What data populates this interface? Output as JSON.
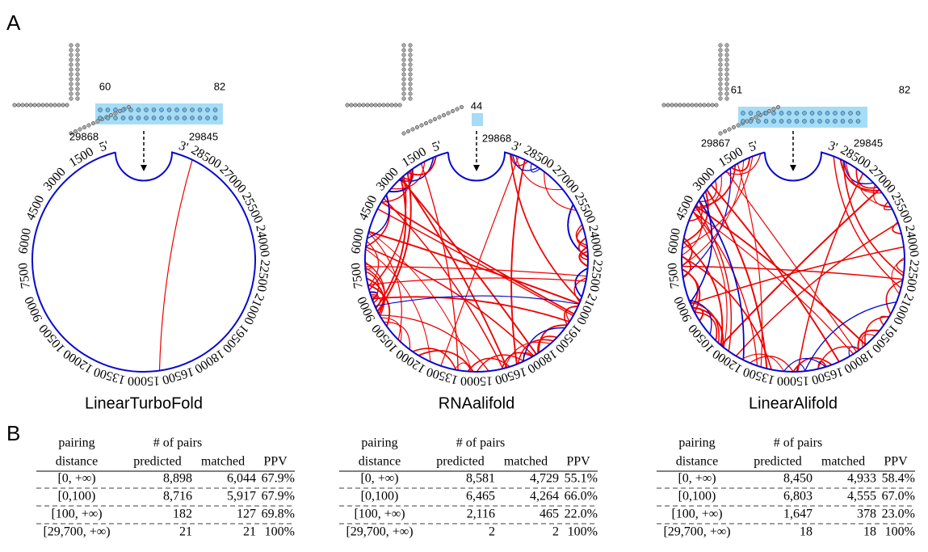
{
  "panel_labels": [
    "A",
    "B"
  ],
  "circle_labels": [
    "5'",
    "3'",
    "1500",
    "3000",
    "4500",
    "6000",
    "7500",
    "9000",
    "10500",
    "12000",
    "13500",
    "15000",
    "16500",
    "18000",
    "19500",
    "21000",
    "22500",
    "24000",
    "25500",
    "27000",
    "28500"
  ],
  "table_header": {
    "top": [
      "pairing",
      "# of pairs"
    ],
    "bottom": [
      "distance",
      "predicted",
      "matched",
      "PPV"
    ]
  },
  "panels": [
    {
      "method": "LinearTurboFold",
      "structure_labels": [
        "60",
        "82",
        "29868",
        "29845"
      ],
      "rows": [
        [
          "[0, +∞)",
          "8,898",
          "6,044",
          "67.9%"
        ],
        [
          "[0,100)",
          "8,716",
          "5,917",
          "67.9%"
        ],
        [
          "[100, +∞)",
          "182",
          "127",
          "69.8%"
        ],
        [
          "[29,700, +∞)",
          "21",
          "21",
          "100%"
        ]
      ]
    },
    {
      "method": "RNAalifold",
      "structure_labels": [
        "44",
        "29868"
      ],
      "rows": [
        [
          "[0, +∞)",
          "8,581",
          "4,729",
          "55.1%"
        ],
        [
          "[0,100)",
          "6,465",
          "4,264",
          "66.0%"
        ],
        [
          "[100, +∞)",
          "2,116",
          "465",
          "22.0%"
        ],
        [
          "[29,700, +∞)",
          "2",
          "2",
          "100%"
        ]
      ]
    },
    {
      "method": "LinearAlifold",
      "structure_labels": [
        "61",
        "82",
        "29867",
        "29845"
      ],
      "rows": [
        [
          "[0, +∞)",
          "8,450",
          "4,933",
          "58.4%"
        ],
        [
          "[0,100)",
          "6,803",
          "4,555",
          "67.0%"
        ],
        [
          "[100, +∞)",
          "1,647",
          "378",
          "23.0%"
        ],
        [
          "[29,700, +∞)",
          "18",
          "18",
          "100%"
        ]
      ]
    }
  ]
}
